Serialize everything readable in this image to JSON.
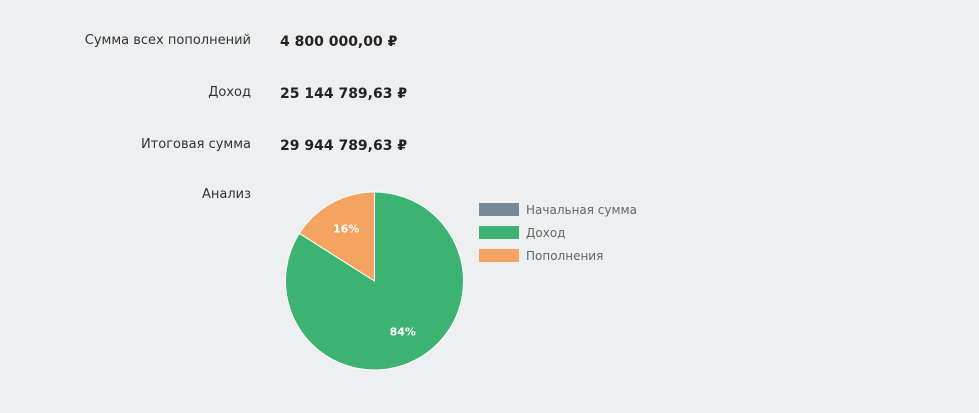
{
  "summary": {
    "total_deposits": {
      "label": "Сумма всех пополнений",
      "value": "4 800 000,00 ₽"
    },
    "income": {
      "label": "Доход",
      "value": "25 144 789,63 ₽"
    },
    "final_amount": {
      "label": "Итоговая сумма",
      "value": "29 944 789,63 ₽"
    },
    "analysis": {
      "label": "Анализ"
    }
  },
  "chart_data": {
    "type": "pie",
    "title": "",
    "legend_position": "right",
    "slices": [
      {
        "name": "Начальная сумма",
        "value": 0,
        "label": "",
        "color": "#778899"
      },
      {
        "name": "Доход",
        "value": 84,
        "label": "84%",
        "color": "#3cb371"
      },
      {
        "name": "Пополнения",
        "value": 16,
        "label": "16%",
        "color": "#f4a460"
      }
    ]
  }
}
